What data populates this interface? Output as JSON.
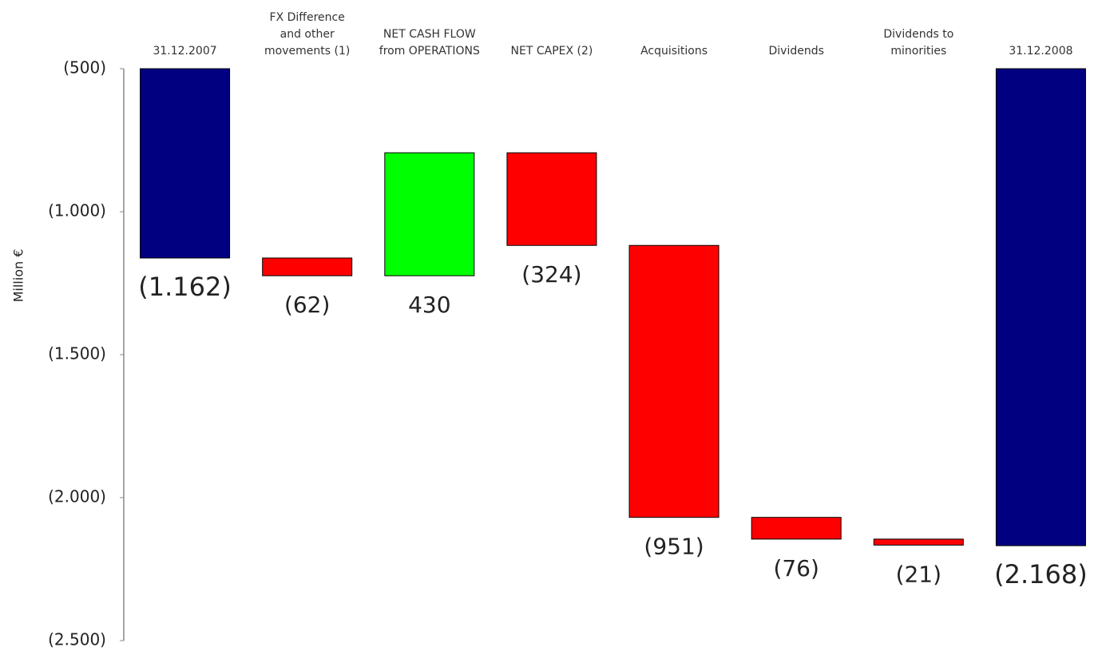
{
  "chart_data": {
    "type": "waterfall",
    "y_axis_label": "Million €",
    "categories": [
      "31.12.2007",
      "FX Difference\nand other\nmovements  (1)",
      "NET CASH FLOW\nfrom OPERATIONS",
      "NET CAPEX (2)",
      "Acquisitions",
      "Dividends",
      "Dividends to\nminorities",
      "31.12.2008"
    ],
    "measure": [
      "total",
      "relative",
      "relative",
      "relative",
      "relative",
      "relative",
      "relative",
      "total"
    ],
    "values": [
      -1162,
      -62,
      430,
      -324,
      -951,
      -76,
      -21,
      -2168
    ],
    "value_labels": [
      "(1.162)",
      "(62)",
      "430",
      "(324)",
      "(951)",
      "(76)",
      "(21)",
      "(2.168)"
    ],
    "colors": {
      "total": "#000080",
      "increase": "#00ff00",
      "decrease": "#ff0000"
    },
    "ylim": [
      -2500,
      -500
    ],
    "yticks": [
      {
        "value": -500,
        "label": "(500)"
      },
      {
        "value": -1000,
        "label": "(1.000)"
      },
      {
        "value": -1500,
        "label": "(1.500)"
      },
      {
        "value": -2000,
        "label": "(2.000)"
      },
      {
        "value": -2500,
        "label": "(2.500)"
      }
    ]
  }
}
